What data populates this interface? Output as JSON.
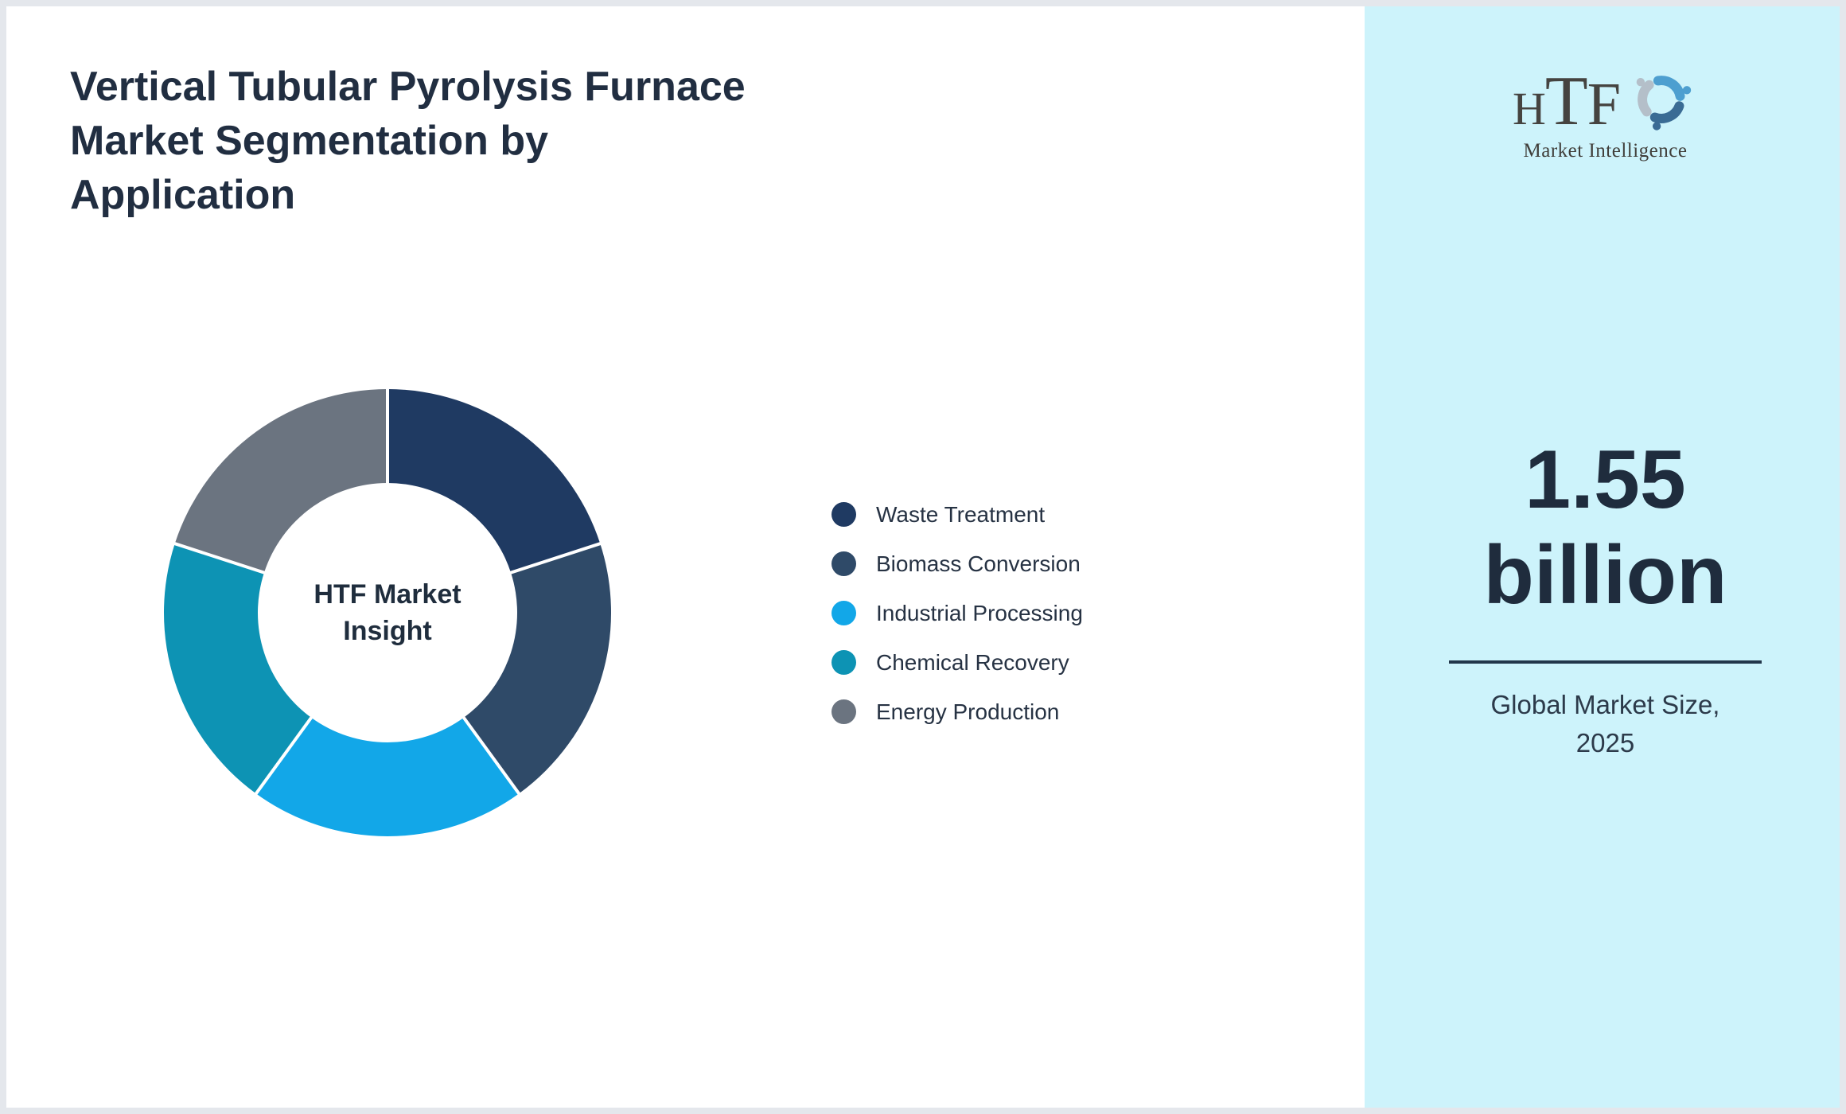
{
  "page": {
    "background": "#ffffff",
    "border_color": "#e4e7ec"
  },
  "header": {
    "title": "Vertical Tubular Pyrolysis Furnace\nMarket Segmentation by\nApplication",
    "title_color": "#212e41"
  },
  "chart_data": {
    "type": "pie",
    "donut": true,
    "title": "Vertical Tubular Pyrolysis Furnace Market Segmentation by Application",
    "center_label": "HTF Market\nInsight",
    "categories": [
      "Waste Treatment",
      "Biomass Conversion",
      "Industrial Processing",
      "Chemical Recovery",
      "Energy Production"
    ],
    "values": [
      20,
      20,
      20,
      20,
      20
    ],
    "unit": "percent (share of total)",
    "colors": [
      "#1f3a62",
      "#2f4a68",
      "#12a7e8",
      "#0d93b4",
      "#6b7480"
    ],
    "inner_radius_ratio": 0.58,
    "start_angle_deg": 0,
    "clockwise": true,
    "separator_color": "#ffffff",
    "legend_position": "right",
    "legend_text_color": "#263243",
    "center_label_color": "#1f2d3d"
  },
  "sidebar": {
    "background": "#cdf3fb",
    "logo": {
      "letters": [
        "H",
        "T",
        "F"
      ],
      "tagline": "Market Intelligence",
      "swirl_colors": [
        "#4d9fd0",
        "#3a6b94",
        "#b4bfc9"
      ]
    },
    "market_size_value": "1.55\nbillion",
    "market_size_caption": "Global Market Size,\n2025",
    "divider_color": "#22364a"
  }
}
